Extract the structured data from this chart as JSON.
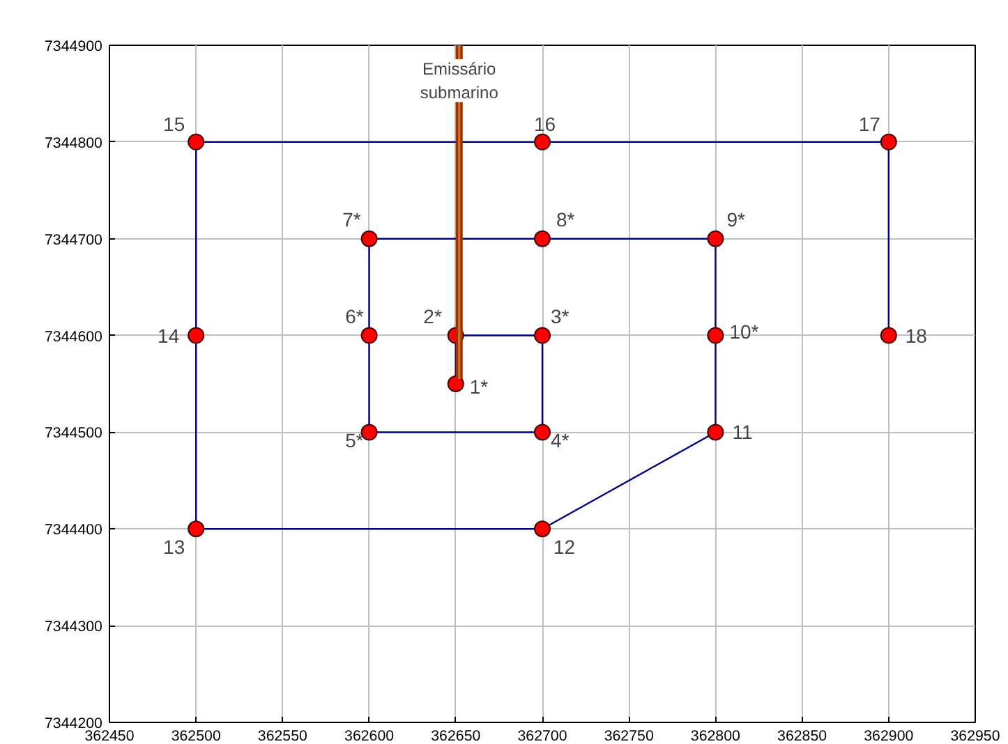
{
  "chart_data": {
    "type": "line",
    "xlim": [
      362450,
      362950
    ],
    "xticks": [
      362450,
      362500,
      362550,
      362600,
      362650,
      362700,
      362750,
      362800,
      362850,
      362900,
      362950
    ],
    "ylim": [
      7344200,
      7344900
    ],
    "yticks": [
      7344200,
      7344300,
      7344400,
      7344500,
      7344600,
      7344700,
      7344800,
      7344900
    ],
    "grid": true,
    "marker": "circle",
    "line_style": "solid",
    "series": [
      {
        "color": "#000080",
        "x": [
          362650,
          362650,
          362700,
          362700,
          362600,
          362600,
          362600,
          362700,
          362800,
          362800,
          362800,
          362700,
          362500,
          362500,
          362500,
          362700,
          362900,
          362900
        ],
        "values": [
          7344550,
          7344600,
          7344600,
          7344500,
          7344500,
          7344600,
          7344700,
          7344700,
          7344700,
          7344600,
          7344500,
          7344400,
          7344400,
          7344600,
          7344800,
          7344800,
          7344800,
          7344600
        ]
      },
      {
        "type": "line",
        "marker": "none",
        "name": "Emissário submarino",
        "color": "#993300",
        "x": [
          362652,
          362652
        ],
        "values": [
          7344555,
          7344900
        ]
      }
    ],
    "annotations": [
      {
        "text": "1*",
        "x": 362650,
        "y": 7344550
      },
      {
        "text": "2*",
        "x": 362650,
        "y": 7344600
      },
      {
        "text": "3*",
        "x": 362700,
        "y": 7344600
      },
      {
        "text": "4*",
        "x": 362700,
        "y": 7344500
      },
      {
        "text": "5*",
        "x": 362600,
        "y": 7344500
      },
      {
        "text": "6*",
        "x": 362600,
        "y": 7344600
      },
      {
        "text": "7*",
        "x": 362600,
        "y": 7344700
      },
      {
        "text": "8*",
        "x": 362700,
        "y": 7344700
      },
      {
        "text": "9*",
        "x": 362800,
        "y": 7344700
      },
      {
        "text": "10*",
        "x": 362800,
        "y": 7344600
      },
      {
        "text": "11",
        "x": 362800,
        "y": 7344500
      },
      {
        "text": "12",
        "x": 362700,
        "y": 7344400
      },
      {
        "text": "13",
        "x": 362500,
        "y": 7344400
      },
      {
        "text": "14",
        "x": 362500,
        "y": 7344600
      },
      {
        "text": "15",
        "x": 362500,
        "y": 7344800
      },
      {
        "text": "16",
        "x": 362700,
        "y": 7344800
      },
      {
        "text": "17",
        "x": 362900,
        "y": 7344800
      },
      {
        "text": "18",
        "x": 362900,
        "y": 7344600
      }
    ]
  }
}
